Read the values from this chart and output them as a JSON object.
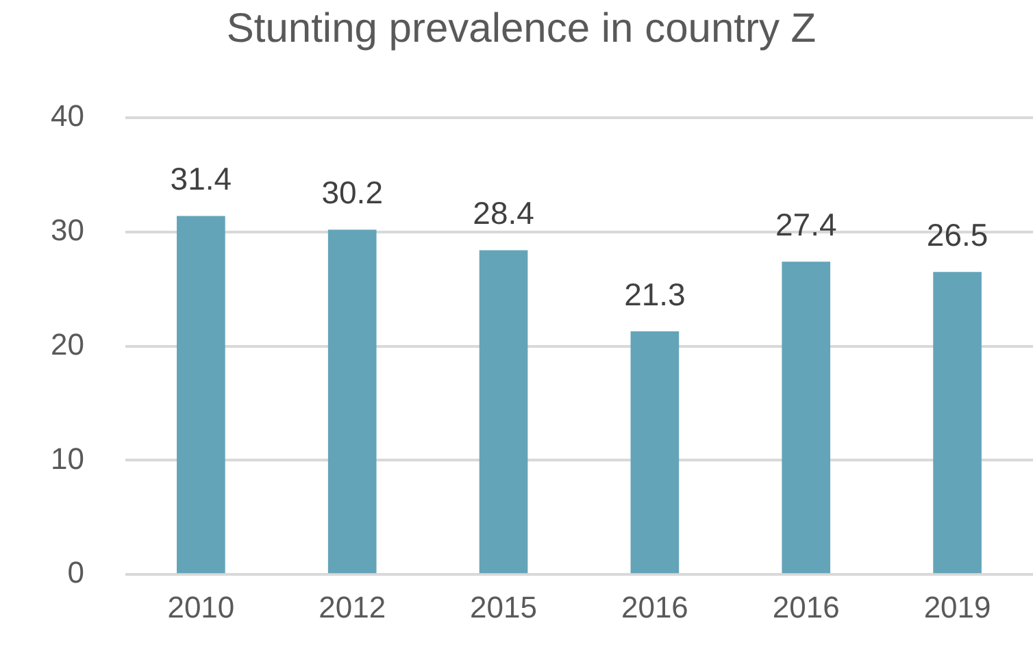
{
  "chart_data": {
    "type": "bar",
    "title": "Stunting prevalence in country Z",
    "categories": [
      "2010",
      "2012",
      "2015",
      "2016",
      "2016",
      "2019"
    ],
    "values": [
      31.4,
      30.2,
      28.4,
      21.3,
      27.4,
      26.5
    ],
    "color": "#64a4b8",
    "ylim": [
      0,
      40
    ],
    "yticks": [
      0,
      10,
      20,
      30,
      40
    ],
    "grid": "y",
    "data_labels": true,
    "legend": false
  }
}
